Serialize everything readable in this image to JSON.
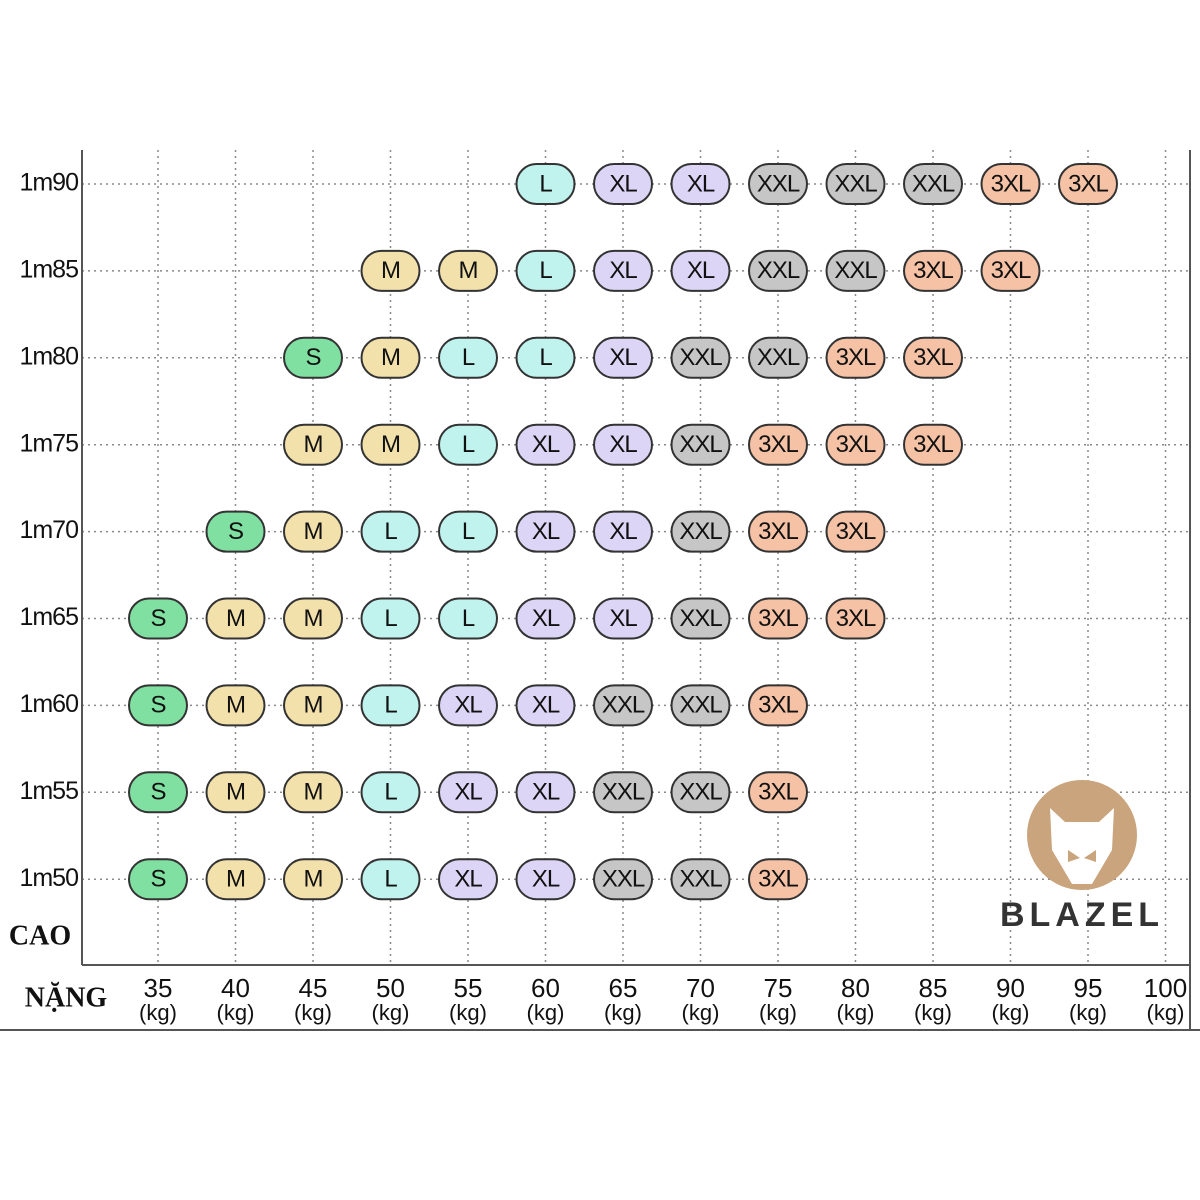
{
  "y_axis_title": "CAO",
  "x_axis_title": "NẶNG",
  "weight_unit": "(kg)",
  "weights": [
    "35",
    "40",
    "45",
    "50",
    "55",
    "60",
    "65",
    "70",
    "75",
    "80",
    "85",
    "90",
    "95",
    "100"
  ],
  "rows": [
    {
      "height": "1m90",
      "sizes": [
        null,
        null,
        null,
        null,
        null,
        "L",
        "XL",
        "XL",
        "XXL",
        "XXL",
        "XXL",
        "3XL",
        "3XL",
        null
      ]
    },
    {
      "height": "1m85",
      "sizes": [
        null,
        null,
        null,
        "M",
        "M",
        "L",
        "XL",
        "XL",
        "XXL",
        "XXL",
        "3XL",
        "3XL",
        null,
        null
      ]
    },
    {
      "height": "1m80",
      "sizes": [
        null,
        null,
        "S",
        "M",
        "L",
        "L",
        "XL",
        "XXL",
        "XXL",
        "3XL",
        "3XL",
        null,
        null,
        null
      ]
    },
    {
      "height": "1m75",
      "sizes": [
        null,
        null,
        "M",
        "M",
        "L",
        "XL",
        "XL",
        "XXL",
        "3XL",
        "3XL",
        "3XL",
        null,
        null,
        null
      ]
    },
    {
      "height": "1m70",
      "sizes": [
        null,
        "S",
        "M",
        "L",
        "L",
        "XL",
        "XL",
        "XXL",
        "3XL",
        "3XL",
        null,
        null,
        null,
        null
      ]
    },
    {
      "height": "1m65",
      "sizes": [
        "S",
        "M",
        "M",
        "L",
        "L",
        "XL",
        "XL",
        "XXL",
        "3XL",
        "3XL",
        null,
        null,
        null,
        null
      ]
    },
    {
      "height": "1m60",
      "sizes": [
        "S",
        "M",
        "M",
        "L",
        "XL",
        "XL",
        "XXL",
        "XXL",
        "3XL",
        null,
        null,
        null,
        null,
        null
      ]
    },
    {
      "height": "1m55",
      "sizes": [
        "S",
        "M",
        "M",
        "L",
        "XL",
        "XL",
        "XXL",
        "XXL",
        "3XL",
        null,
        null,
        null,
        null,
        null
      ]
    },
    {
      "height": "1m50",
      "sizes": [
        "S",
        "M",
        "M",
        "L",
        "XL",
        "XL",
        "XXL",
        "XXL",
        "3XL",
        null,
        null,
        null,
        null,
        null
      ]
    }
  ],
  "size_colors": {
    "S": "#80e0a2",
    "M": "#f3e1ac",
    "L": "#c0f3ee",
    "XL": "#dcd5f6",
    "XXL": "#c6c6c6",
    "3XL": "#f6c2a6"
  },
  "brand": "BLAZEL"
}
